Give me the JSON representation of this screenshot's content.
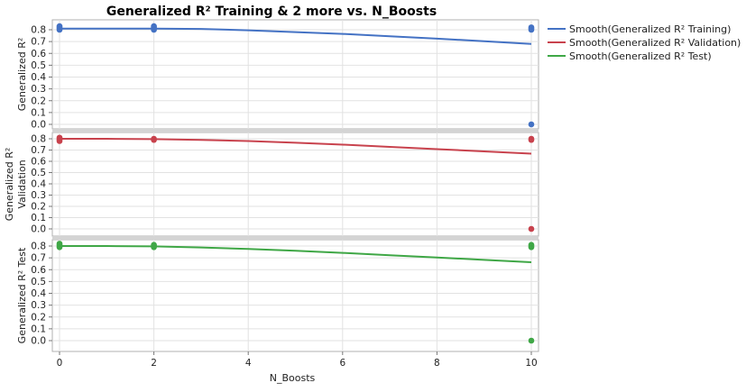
{
  "chart_data": {
    "type": "line",
    "title": "Generalized R² Training & 2 more vs. N_Boosts",
    "xlabel": "N_Boosts",
    "xlim": [
      0,
      10
    ],
    "x_ticks": [
      "0",
      "2",
      "4",
      "6",
      "8",
      "10"
    ],
    "ylim": [
      0,
      0.8
    ],
    "y_ticks": [
      "0.0",
      "0.1",
      "0.2",
      "0.3",
      "0.4",
      "0.5",
      "0.6",
      "0.7",
      "0.8"
    ],
    "grid": true,
    "legend_position": "right",
    "panels": [
      {
        "ylabel_lines": [
          "Generalized R²"
        ],
        "color": "#4472c4",
        "legend": "Smooth(Generalized R² Training)",
        "smooth": {
          "x": [
            0,
            1,
            2,
            3,
            4,
            5,
            6,
            7,
            8,
            9,
            10
          ],
          "y": [
            0.81,
            0.81,
            0.81,
            0.807,
            0.795,
            0.78,
            0.765,
            0.745,
            0.725,
            0.703,
            0.68
          ]
        },
        "points": [
          {
            "x": 0,
            "y": 0.8
          },
          {
            "x": 0,
            "y": 0.81
          },
          {
            "x": 0,
            "y": 0.82
          },
          {
            "x": 0,
            "y": 0.83
          },
          {
            "x": 2,
            "y": 0.8
          },
          {
            "x": 2,
            "y": 0.81
          },
          {
            "x": 2,
            "y": 0.82
          },
          {
            "x": 2,
            "y": 0.83
          },
          {
            "x": 10,
            "y": 0.8
          },
          {
            "x": 10,
            "y": 0.81
          },
          {
            "x": 10,
            "y": 0.82
          },
          {
            "x": 10,
            "y": 0.0
          }
        ]
      },
      {
        "ylabel_lines": [
          "Generalized R²",
          "Validation"
        ],
        "color": "#c8424d",
        "legend": "Smooth(Generalized R² Validation)",
        "smooth": {
          "x": [
            0,
            1,
            2,
            3,
            4,
            5,
            6,
            7,
            8,
            9,
            10
          ],
          "y": [
            0.8,
            0.8,
            0.797,
            0.79,
            0.78,
            0.765,
            0.748,
            0.728,
            0.708,
            0.688,
            0.668
          ]
        },
        "points": [
          {
            "x": 0,
            "y": 0.78
          },
          {
            "x": 0,
            "y": 0.79
          },
          {
            "x": 0,
            "y": 0.8
          },
          {
            "x": 0,
            "y": 0.81
          },
          {
            "x": 2,
            "y": 0.79
          },
          {
            "x": 2,
            "y": 0.8
          },
          {
            "x": 10,
            "y": 0.79
          },
          {
            "x": 10,
            "y": 0.8
          },
          {
            "x": 10,
            "y": 0.0
          }
        ]
      },
      {
        "ylabel_lines": [
          "Generalized R² Test"
        ],
        "color": "#3fa746",
        "legend": "Smooth(Generalized R² Test)",
        "smooth": {
          "x": [
            0,
            1,
            2,
            3,
            4,
            5,
            6,
            7,
            8,
            9,
            10
          ],
          "y": [
            0.8,
            0.8,
            0.797,
            0.788,
            0.775,
            0.76,
            0.742,
            0.722,
            0.703,
            0.683,
            0.663
          ]
        },
        "points": [
          {
            "x": 0,
            "y": 0.79
          },
          {
            "x": 0,
            "y": 0.8
          },
          {
            "x": 0,
            "y": 0.81
          },
          {
            "x": 0,
            "y": 0.82
          },
          {
            "x": 2,
            "y": 0.79
          },
          {
            "x": 2,
            "y": 0.8
          },
          {
            "x": 2,
            "y": 0.81
          },
          {
            "x": 10,
            "y": 0.79
          },
          {
            "x": 10,
            "y": 0.8
          },
          {
            "x": 10,
            "y": 0.81
          },
          {
            "x": 10,
            "y": 0.0
          }
        ]
      }
    ]
  }
}
